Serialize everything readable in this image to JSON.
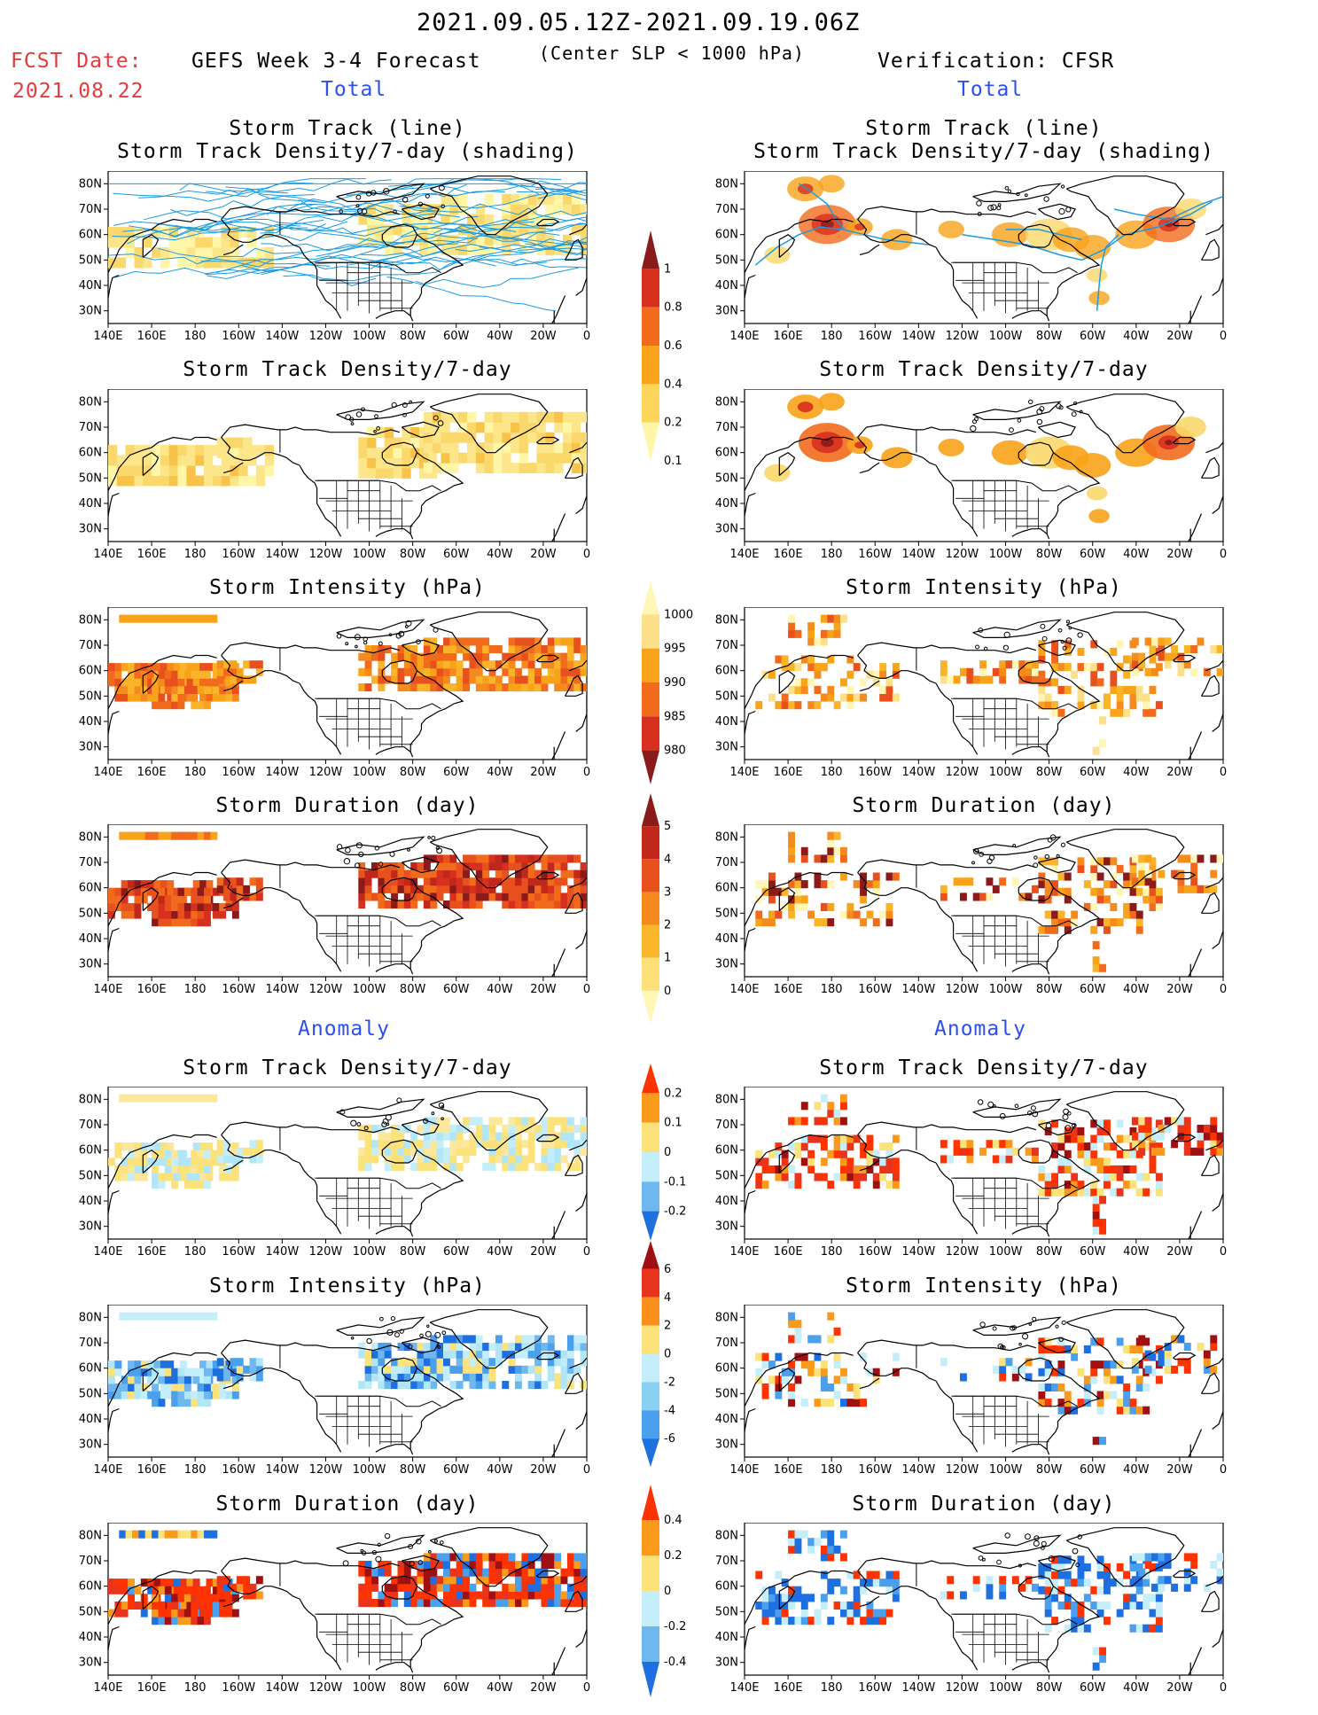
{
  "header": {
    "date_range": "2021.09.05.12Z-2021.09.19.06Z",
    "fcst_label": "FCST Date:",
    "fcst_date": "2021.08.22",
    "left_title": "GEFS Week 3-4 Forecast",
    "criterion": "(Center SLP < 1000 hPa)",
    "right_title": "Verification: CFSR",
    "left_total": "Total",
    "right_total": "Total",
    "left_anomaly": "Anomaly",
    "right_anomaly": "Anomaly"
  },
  "panel_titles": {
    "p1_line1": "Storm Track (line)",
    "p1_line2": "Storm Track Density/7-day (shading)",
    "density": "Storm Track Density/7-day",
    "intensity": "Storm Intensity (hPa)",
    "duration": "Storm Duration (day)"
  },
  "axes": {
    "lon_labels": [
      "140E",
      "160E",
      "180",
      "160W",
      "140W",
      "120W",
      "100W",
      "80W",
      "60W",
      "40W",
      "20W",
      "0"
    ],
    "lat_labels": [
      "80N",
      "70N",
      "60N",
      "50N",
      "40N",
      "30N"
    ]
  },
  "colorbars": {
    "density_total": {
      "labels": [
        "1",
        "0.8",
        "0.6",
        "0.4",
        "0.2",
        "0.1"
      ],
      "colors": [
        "#8b1a1a",
        "#d7301f",
        "#f26b1d",
        "#f9a31b",
        "#fdd55a",
        "#fff6a8"
      ]
    },
    "intensity_total": {
      "labels": [
        "1000",
        "995",
        "990",
        "985",
        "980"
      ],
      "colors": [
        "#fff6b8",
        "#fde08a",
        "#f9a31b",
        "#f26b1d",
        "#d7301f",
        "#8b1a1a"
      ]
    },
    "duration_total": {
      "labels": [
        "5",
        "4",
        "3",
        "2",
        "1",
        "0"
      ],
      "colors": [
        "#8b1a1a",
        "#c1271b",
        "#e8511d",
        "#f58a1f",
        "#f9b62b",
        "#fde07a",
        "#fff6b8"
      ]
    },
    "density_anom": {
      "labels": [
        "0.2",
        "0.1",
        "0",
        "-0.1",
        "-0.2"
      ],
      "colors": [
        "#ff3300",
        "#f99a1c",
        "#fbe27a",
        "#c3eefa",
        "#6fb8ef",
        "#1e6fe0"
      ]
    },
    "intensity_anom": {
      "labels": [
        "6",
        "4",
        "2",
        "0",
        "-2",
        "-4",
        "-6"
      ],
      "colors": [
        "#a01010",
        "#e8341c",
        "#f9901c",
        "#fbe27a",
        "#c3eefa",
        "#8ad0f2",
        "#4aa0ec",
        "#1e6fe0"
      ]
    },
    "duration_anom": {
      "labels": [
        "0.4",
        "0.2",
        "0",
        "-0.2",
        "-0.4"
      ],
      "colors": [
        "#ff3300",
        "#f99a1c",
        "#fbe27a",
        "#c3eefa",
        "#6fb8ef",
        "#1e6fe0"
      ]
    }
  },
  "colors": {
    "fcst_red": "#e53b3b",
    "section_blue": "#2e4ff0",
    "track_line": "#1d9be0",
    "coast": "#000000"
  }
}
